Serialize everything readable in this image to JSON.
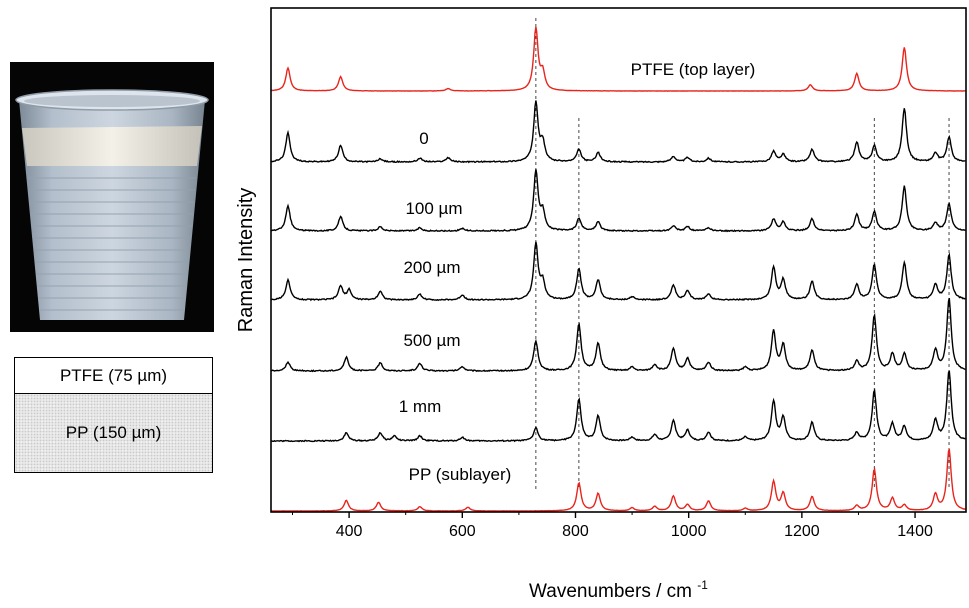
{
  "layers": {
    "top_label": "PTFE (75 µm)",
    "bottom_label": "PP (150 µm)"
  },
  "colors": {
    "reference_spectrum": "#e8241d",
    "depth_spectrum": "#000000"
  },
  "chart_data": {
    "type": "line",
    "title": "",
    "xlabel": "Wavenumbers / cm",
    "xlabel_superscript": "-1",
    "ylabel": "Raman Intensity",
    "xlim": [
      262,
      1490
    ],
    "xticks": [
      400,
      600,
      800,
      1000,
      1200,
      1400
    ],
    "y_axis_ticks": "none",
    "grid": false,
    "legend": "none (each trace labelled inline)",
    "reference_lines_x": [
      730,
      806,
      1328,
      1460
    ],
    "series": [
      {
        "label": "PTFE (top layer)",
        "color": "#e8241d",
        "peaks": [
          [
            292,
            0.37
          ],
          [
            385,
            0.23
          ],
          [
            575,
            0.04
          ],
          [
            730,
            1.0
          ],
          [
            742,
            0.28
          ],
          [
            1215,
            0.1
          ],
          [
            1297,
            0.28
          ],
          [
            1381,
            0.7
          ]
        ]
      },
      {
        "label": "0",
        "color": "#000000",
        "peaks": [
          [
            292,
            0.47
          ],
          [
            385,
            0.27
          ],
          [
            455,
            0.05
          ],
          [
            525,
            0.06
          ],
          [
            575,
            0.07
          ],
          [
            730,
            0.96
          ],
          [
            742,
            0.3
          ],
          [
            806,
            0.2
          ],
          [
            840,
            0.15
          ],
          [
            973,
            0.09
          ],
          [
            998,
            0.07
          ],
          [
            1035,
            0.06
          ],
          [
            1150,
            0.17
          ],
          [
            1167,
            0.12
          ],
          [
            1218,
            0.2
          ],
          [
            1297,
            0.32
          ],
          [
            1328,
            0.26
          ],
          [
            1381,
            0.87
          ],
          [
            1436,
            0.14
          ],
          [
            1460,
            0.4
          ]
        ]
      },
      {
        "label": "100 µm",
        "color": "#000000",
        "peaks": [
          [
            292,
            0.4
          ],
          [
            385,
            0.23
          ],
          [
            455,
            0.07
          ],
          [
            525,
            0.05
          ],
          [
            600,
            0.04
          ],
          [
            730,
            0.96
          ],
          [
            742,
            0.3
          ],
          [
            806,
            0.2
          ],
          [
            840,
            0.15
          ],
          [
            973,
            0.08
          ],
          [
            998,
            0.07
          ],
          [
            1035,
            0.05
          ],
          [
            1150,
            0.19
          ],
          [
            1167,
            0.14
          ],
          [
            1218,
            0.19
          ],
          [
            1297,
            0.26
          ],
          [
            1328,
            0.31
          ],
          [
            1381,
            0.72
          ],
          [
            1436,
            0.13
          ],
          [
            1460,
            0.44
          ]
        ]
      },
      {
        "label": "200 µm",
        "color": "#000000",
        "peaks": [
          [
            292,
            0.32
          ],
          [
            385,
            0.22
          ],
          [
            400,
            0.16
          ],
          [
            455,
            0.14
          ],
          [
            525,
            0.09
          ],
          [
            600,
            0.08
          ],
          [
            730,
            0.9
          ],
          [
            742,
            0.28
          ],
          [
            806,
            0.5
          ],
          [
            840,
            0.32
          ],
          [
            900,
            0.05
          ],
          [
            973,
            0.24
          ],
          [
            998,
            0.14
          ],
          [
            1035,
            0.1
          ],
          [
            1150,
            0.52
          ],
          [
            1167,
            0.32
          ],
          [
            1218,
            0.3
          ],
          [
            1297,
            0.25
          ],
          [
            1328,
            0.57
          ],
          [
            1381,
            0.6
          ],
          [
            1436,
            0.24
          ],
          [
            1460,
            0.72
          ]
        ]
      },
      {
        "label": "500 µm",
        "color": "#000000",
        "peaks": [
          [
            292,
            0.14
          ],
          [
            395,
            0.22
          ],
          [
            455,
            0.13
          ],
          [
            525,
            0.12
          ],
          [
            600,
            0.07
          ],
          [
            730,
            0.48
          ],
          [
            806,
            0.76
          ],
          [
            840,
            0.45
          ],
          [
            900,
            0.06
          ],
          [
            940,
            0.1
          ],
          [
            973,
            0.36
          ],
          [
            998,
            0.2
          ],
          [
            1035,
            0.14
          ],
          [
            1100,
            0.06
          ],
          [
            1150,
            0.64
          ],
          [
            1167,
            0.42
          ],
          [
            1218,
            0.33
          ],
          [
            1297,
            0.15
          ],
          [
            1328,
            0.9
          ],
          [
            1360,
            0.27
          ],
          [
            1381,
            0.27
          ],
          [
            1436,
            0.33
          ],
          [
            1460,
            1.17
          ]
        ]
      },
      {
        "label": "1 mm",
        "color": "#000000",
        "peaks": [
          [
            395,
            0.13
          ],
          [
            455,
            0.13
          ],
          [
            480,
            0.08
          ],
          [
            525,
            0.08
          ],
          [
            600,
            0.06
          ],
          [
            730,
            0.21
          ],
          [
            806,
            0.67
          ],
          [
            840,
            0.4
          ],
          [
            900,
            0.06
          ],
          [
            940,
            0.1
          ],
          [
            973,
            0.33
          ],
          [
            998,
            0.17
          ],
          [
            1035,
            0.14
          ],
          [
            1100,
            0.06
          ],
          [
            1150,
            0.64
          ],
          [
            1167,
            0.37
          ],
          [
            1218,
            0.3
          ],
          [
            1297,
            0.13
          ],
          [
            1328,
            0.81
          ],
          [
            1360,
            0.27
          ],
          [
            1381,
            0.23
          ],
          [
            1436,
            0.33
          ],
          [
            1460,
            1.14
          ]
        ]
      },
      {
        "label": "PP (sublayer)",
        "color": "#e8241d",
        "peaks": [
          [
            395,
            0.17
          ],
          [
            452,
            0.14
          ],
          [
            525,
            0.07
          ],
          [
            610,
            0.06
          ],
          [
            806,
            0.45
          ],
          [
            840,
            0.28
          ],
          [
            900,
            0.05
          ],
          [
            940,
            0.07
          ],
          [
            973,
            0.24
          ],
          [
            998,
            0.1
          ],
          [
            1035,
            0.16
          ],
          [
            1100,
            0.04
          ],
          [
            1150,
            0.47
          ],
          [
            1167,
            0.28
          ],
          [
            1218,
            0.23
          ],
          [
            1297,
            0.08
          ],
          [
            1328,
            0.67
          ],
          [
            1360,
            0.2
          ],
          [
            1381,
            0.09
          ],
          [
            1436,
            0.26
          ],
          [
            1460,
            1.0
          ]
        ]
      }
    ]
  }
}
